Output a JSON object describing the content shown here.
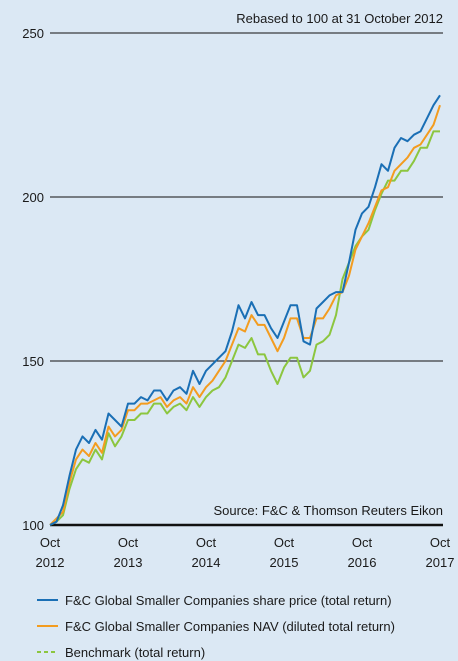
{
  "chart_data": {
    "type": "line",
    "annotations": [
      "Rebased to 100 at 31 October 2012",
      "Source: F&C & Thomson Reuters Eikon"
    ],
    "categories": [
      "Oct 2012",
      null,
      null,
      null,
      null,
      null,
      null,
      null,
      null,
      null,
      null,
      null,
      "Oct 2013",
      null,
      null,
      null,
      null,
      null,
      null,
      null,
      null,
      null,
      null,
      null,
      "Oct 2014",
      null,
      null,
      null,
      null,
      null,
      null,
      null,
      null,
      null,
      null,
      null,
      "Oct 2015",
      null,
      null,
      null,
      null,
      null,
      null,
      null,
      null,
      null,
      null,
      null,
      "Oct 2016",
      null,
      null,
      null,
      null,
      null,
      null,
      null,
      null,
      null,
      null,
      null,
      "Oct 2017"
    ],
    "series": [
      {
        "name": "F&C Global Smaller Companies share price (total return)",
        "color": "#1a6fb5",
        "values": [
          100,
          101,
          106,
          115,
          123,
          127,
          125,
          129,
          126,
          134,
          132,
          130,
          137,
          137,
          139,
          138,
          141,
          141,
          138,
          141,
          142,
          140,
          147,
          143,
          147,
          149,
          151,
          153,
          159,
          167,
          163,
          168,
          164,
          164,
          160,
          157,
          162,
          167,
          167,
          156,
          155,
          166,
          168,
          170,
          171,
          171,
          180,
          190,
          195,
          197,
          203,
          210,
          208,
          215,
          218,
          217,
          219,
          220,
          224,
          228,
          231
        ]
      },
      {
        "name": "F&C Global Smaller Companies NAV (diluted total return)",
        "color": "#f39c1f",
        "values": [
          100,
          102,
          104,
          113,
          120,
          123,
          121,
          125,
          122,
          130,
          127,
          129,
          135,
          135,
          137,
          137,
          138,
          139,
          136,
          138,
          139,
          137,
          142,
          139,
          142,
          144,
          147,
          150,
          155,
          160,
          159,
          164,
          161,
          161,
          157,
          153,
          157,
          163,
          163,
          157,
          157,
          163,
          163,
          166,
          170,
          171,
          176,
          184,
          188,
          192,
          197,
          202,
          203,
          208,
          210,
          212,
          215,
          216,
          219,
          222,
          228
        ]
      },
      {
        "name": "Benchmark (total return)",
        "color": "#8cc63f",
        "legend_dashed": true,
        "values": [
          100,
          101,
          103,
          111,
          117,
          120,
          119,
          123,
          120,
          128,
          124,
          127,
          132,
          132,
          134,
          134,
          137,
          137,
          134,
          136,
          137,
          135,
          139,
          136,
          139,
          141,
          142,
          145,
          150,
          155,
          154,
          157,
          152,
          152,
          147,
          143,
          148,
          151,
          151,
          145,
          147,
          155,
          156,
          158,
          164,
          175,
          180,
          185,
          188,
          190,
          196,
          201,
          205,
          205,
          208,
          208,
          211,
          215,
          215,
          220,
          220
        ]
      }
    ],
    "ylim": [
      100,
      250
    ],
    "yticks": [
      100,
      150,
      200,
      250
    ],
    "grid": true
  }
}
